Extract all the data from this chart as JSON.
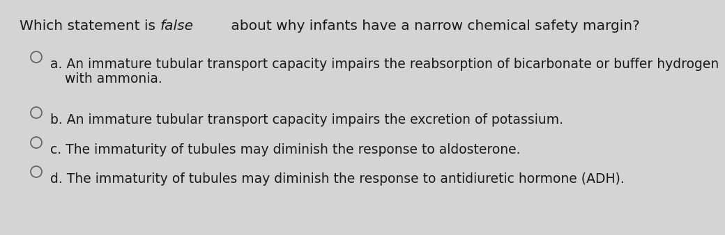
{
  "background_color": "#d4d4d4",
  "title_part1": "Which statement is ",
  "title_italic": "false",
  "title_part2": " about why infants have a narrow chemical safety margin?",
  "options": [
    {
      "label": "a. ",
      "line1": "An immature tubular transport capacity impairs the reabsorption of bicarbonate or buffer hydrogen",
      "line2": "with ammonia."
    },
    {
      "label": "b. ",
      "line1": "An immature tubular transport capacity impairs the excretion of potassium.",
      "line2": null
    },
    {
      "label": "c. ",
      "line1": "The immaturity of tubules may diminish the response to aldosterone.",
      "line2": null
    },
    {
      "label": "d. ",
      "line1": "The immaturity of tubules may diminish the response to antidiuretic hormone (ADH).",
      "line2": null
    }
  ],
  "font_size_title": 14.5,
  "font_size_options": 13.5,
  "text_color": "#1a1a1a",
  "circle_color": "#666666",
  "circle_lw": 1.3
}
